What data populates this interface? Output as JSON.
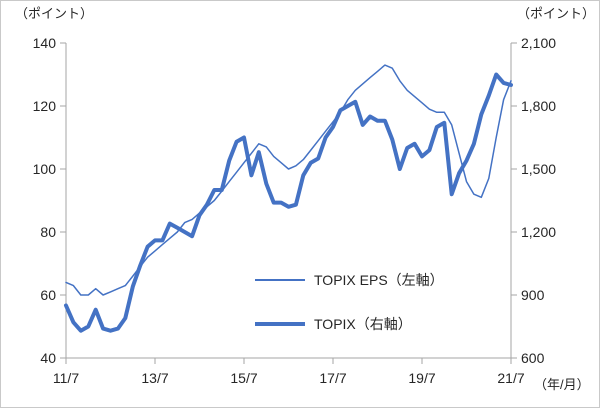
{
  "chart": {
    "left_axis_title": "（ポイント）",
    "right_axis_title": "（ポイント）",
    "x_axis_title": "（年/月）",
    "accent_color": "#4472C4",
    "axis_line_color": "#a6a6a6"
  },
  "chart_data": {
    "type": "line",
    "title": "",
    "x_start": "2011/07",
    "x_end": "2021/07",
    "x_step_months": 2,
    "x_tick_indices": [
      0,
      12,
      24,
      36,
      48,
      60
    ],
    "x_tick_labels": [
      "11/7",
      "13/7",
      "15/7",
      "17/7",
      "19/7",
      "21/7"
    ],
    "left_axis": {
      "range": [
        40,
        140
      ],
      "ticks": [
        40,
        60,
        80,
        100,
        120,
        140
      ],
      "tick_labels": [
        "40",
        "60",
        "80",
        "100",
        "120",
        "140"
      ],
      "title": "（ポイント）"
    },
    "right_axis": {
      "range": [
        600,
        2100
      ],
      "ticks": [
        600,
        900,
        1200,
        1500,
        1800,
        2100
      ],
      "tick_labels": [
        "600",
        "900",
        "1,200",
        "1,500",
        "1,800",
        "2,100"
      ],
      "title": "（ポイント）"
    },
    "grid": false,
    "legend_position": "inside-lower-center",
    "series": [
      {
        "name": "TOPIX EPS（左軸）",
        "axis": "left",
        "style": "thin",
        "color": "#4472C4",
        "width": 1.5,
        "values": [
          64,
          63,
          60,
          60,
          62,
          60,
          61,
          62,
          63,
          66,
          69,
          72,
          74,
          76,
          78,
          80,
          83,
          84,
          86,
          88,
          90,
          93,
          96,
          99,
          102,
          105,
          108,
          107,
          104,
          102,
          100,
          101,
          103,
          106,
          109,
          112,
          115,
          118,
          122,
          125,
          127,
          129,
          131,
          133,
          132,
          128,
          125,
          123,
          121,
          119,
          118,
          118,
          114,
          105,
          96,
          92,
          91,
          97,
          110,
          122,
          128
        ]
      },
      {
        "name": "TOPIX（右軸）",
        "axis": "right",
        "style": "thick",
        "color": "#4472C4",
        "width": 4,
        "values": [
          850,
          770,
          730,
          750,
          830,
          740,
          730,
          740,
          790,
          940,
          1040,
          1130,
          1160,
          1160,
          1240,
          1220,
          1200,
          1180,
          1280,
          1330,
          1400,
          1400,
          1540,
          1630,
          1650,
          1470,
          1580,
          1430,
          1340,
          1340,
          1320,
          1330,
          1470,
          1530,
          1550,
          1650,
          1700,
          1780,
          1800,
          1820,
          1710,
          1750,
          1730,
          1730,
          1640,
          1500,
          1600,
          1620,
          1560,
          1590,
          1700,
          1720,
          1380,
          1480,
          1540,
          1620,
          1760,
          1850,
          1950,
          1910,
          1900
        ]
      }
    ]
  },
  "legend": {
    "eps_label": "TOPIX EPS（左軸）",
    "topix_label": "TOPIX（右軸）"
  }
}
